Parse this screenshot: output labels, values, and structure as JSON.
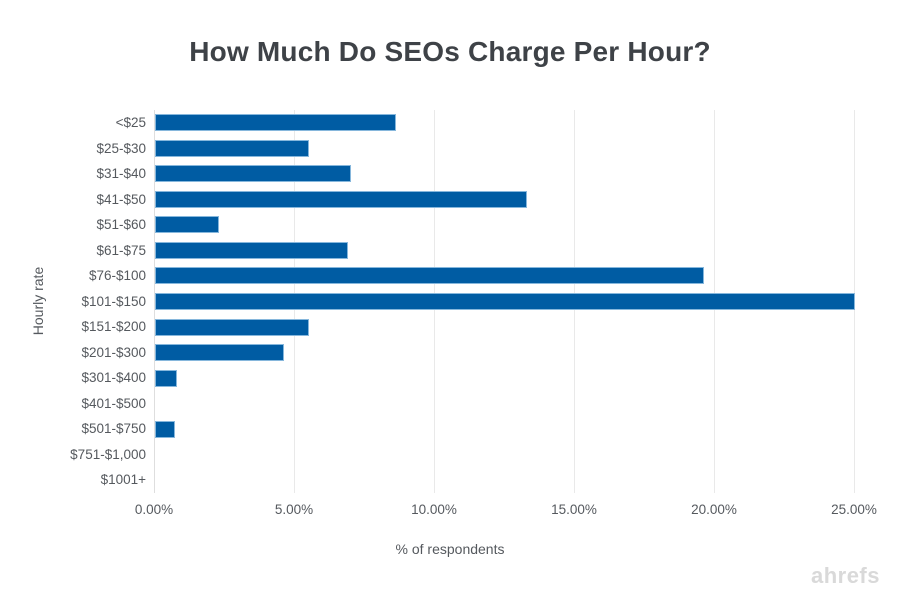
{
  "watermark": "ahrefs",
  "colors": {
    "background": "#FFFFFF",
    "bar_fill": "#005CA3",
    "bar_border": "#86B7DC",
    "gridline": "#E9E9E9",
    "axis_line": "#DEDEDE",
    "title_text": "#3E4247",
    "axis_text": "#55595E",
    "watermark_text": "#D9D9D9"
  },
  "chart_data": {
    "type": "bar",
    "orientation": "horizontal",
    "title": "How Much Do SEOs Charge Per Hour?",
    "xlabel": "% of respondents",
    "ylabel": "Hourly rate",
    "categories": [
      "<$25",
      "$25-$30",
      "$31-$40",
      "$41-$50",
      "$51-$60",
      "$61-$75",
      "$76-$100",
      "$101-$150",
      "$151-$200",
      "$201-$300",
      "$301-$400",
      "$401-$500",
      "$501-$750",
      "$751-$1,000",
      "$1001+"
    ],
    "values": [
      8.6,
      5.5,
      7.0,
      13.3,
      2.3,
      6.9,
      19.6,
      25.0,
      5.5,
      4.6,
      0.8,
      0,
      0.7,
      0,
      0
    ],
    "xlim": [
      0,
      25
    ],
    "xticks": [
      {
        "value": 0,
        "label": "0.00%"
      },
      {
        "value": 5,
        "label": "5.00%"
      },
      {
        "value": 10,
        "label": "10.00%"
      },
      {
        "value": 15,
        "label": "15.00%"
      },
      {
        "value": 20,
        "label": "20.00%"
      },
      {
        "value": 25,
        "label": "25.00%"
      }
    ],
    "grid": "vertical",
    "legend": "none"
  }
}
